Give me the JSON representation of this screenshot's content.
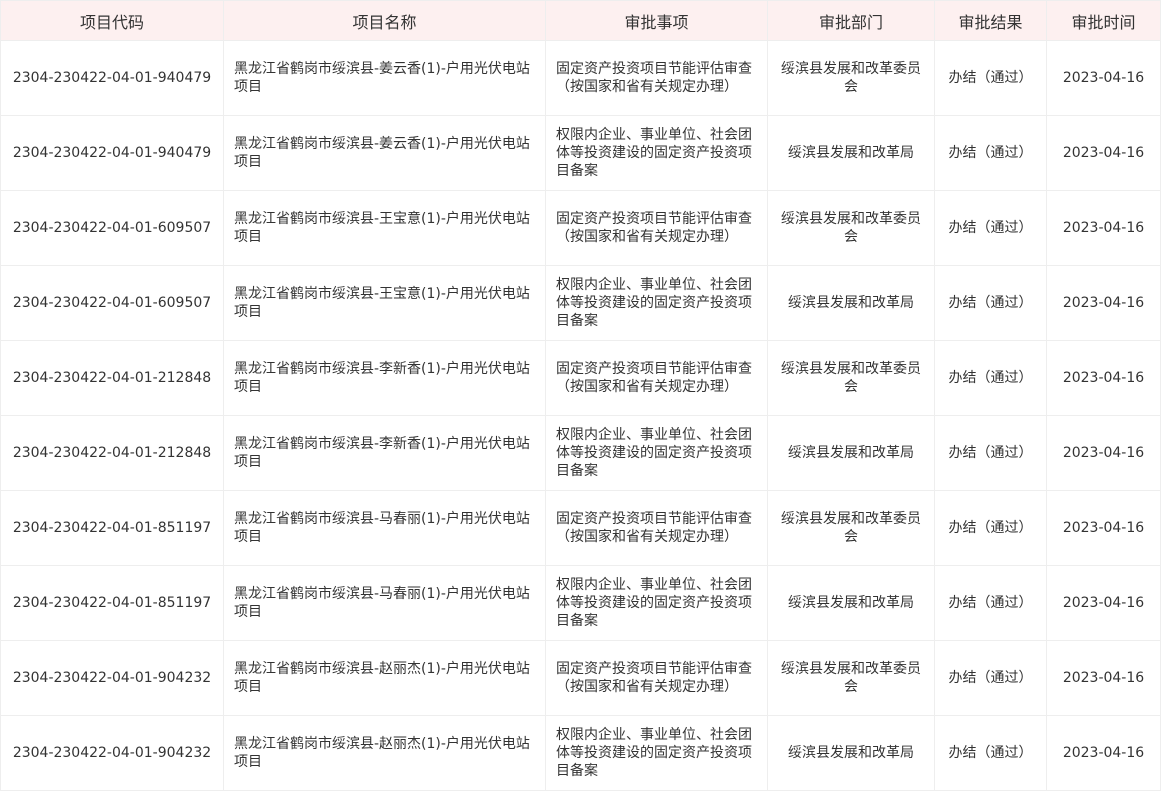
{
  "table": {
    "headers": [
      "项目代码",
      "项目名称",
      "审批事项",
      "审批部门",
      "审批结果",
      "审批时间"
    ],
    "rows": [
      {
        "code": "2304-230422-04-01-940479",
        "name": "黑龙江省鹤岗市绥滨县-姜云香(1)-户用光伏电站项目",
        "matter": "固定资产投资项目节能评估审查（按国家和省有关规定办理）",
        "dept": "绥滨县发展和改革委员会",
        "result": "办结（通过）",
        "date": "2023-04-16"
      },
      {
        "code": "2304-230422-04-01-940479",
        "name": "黑龙江省鹤岗市绥滨县-姜云香(1)-户用光伏电站项目",
        "matter": "权限内企业、事业单位、社会团体等投资建设的固定资产投资项目备案",
        "dept": "绥滨县发展和改革局",
        "result": "办结（通过）",
        "date": "2023-04-16"
      },
      {
        "code": "2304-230422-04-01-609507",
        "name": "黑龙江省鹤岗市绥滨县-王宝意(1)-户用光伏电站项目",
        "matter": "固定资产投资项目节能评估审查（按国家和省有关规定办理）",
        "dept": "绥滨县发展和改革委员会",
        "result": "办结（通过）",
        "date": "2023-04-16"
      },
      {
        "code": "2304-230422-04-01-609507",
        "name": "黑龙江省鹤岗市绥滨县-王宝意(1)-户用光伏电站项目",
        "matter": "权限内企业、事业单位、社会团体等投资建设的固定资产投资项目备案",
        "dept": "绥滨县发展和改革局",
        "result": "办结（通过）",
        "date": "2023-04-16"
      },
      {
        "code": "2304-230422-04-01-212848",
        "name": "黑龙江省鹤岗市绥滨县-李新香(1)-户用光伏电站项目",
        "matter": "固定资产投资项目节能评估审查（按国家和省有关规定办理）",
        "dept": "绥滨县发展和改革委员会",
        "result": "办结（通过）",
        "date": "2023-04-16"
      },
      {
        "code": "2304-230422-04-01-212848",
        "name": "黑龙江省鹤岗市绥滨县-李新香(1)-户用光伏电站项目",
        "matter": "权限内企业、事业单位、社会团体等投资建设的固定资产投资项目备案",
        "dept": "绥滨县发展和改革局",
        "result": "办结（通过）",
        "date": "2023-04-16"
      },
      {
        "code": "2304-230422-04-01-851197",
        "name": "黑龙江省鹤岗市绥滨县-马春丽(1)-户用光伏电站项目",
        "matter": "固定资产投资项目节能评估审查（按国家和省有关规定办理）",
        "dept": "绥滨县发展和改革委员会",
        "result": "办结（通过）",
        "date": "2023-04-16"
      },
      {
        "code": "2304-230422-04-01-851197",
        "name": "黑龙江省鹤岗市绥滨县-马春丽(1)-户用光伏电站项目",
        "matter": "权限内企业、事业单位、社会团体等投资建设的固定资产投资项目备案",
        "dept": "绥滨县发展和改革局",
        "result": "办结（通过）",
        "date": "2023-04-16"
      },
      {
        "code": "2304-230422-04-01-904232",
        "name": "黑龙江省鹤岗市绥滨县-赵丽杰(1)-户用光伏电站项目",
        "matter": "固定资产投资项目节能评估审查（按国家和省有关规定办理）",
        "dept": "绥滨县发展和改革委员会",
        "result": "办结（通过）",
        "date": "2023-04-16"
      },
      {
        "code": "2304-230422-04-01-904232",
        "name": "黑龙江省鹤岗市绥滨县-赵丽杰(1)-户用光伏电站项目",
        "matter": "权限内企业、事业单位、社会团体等投资建设的固定资产投资项目备案",
        "dept": "绥滨县发展和改革局",
        "result": "办结（通过）",
        "date": "2023-04-16"
      }
    ]
  },
  "colors": {
    "header_bg": "#fdf0f0",
    "border": "#eeeeee",
    "text": "#333333"
  }
}
